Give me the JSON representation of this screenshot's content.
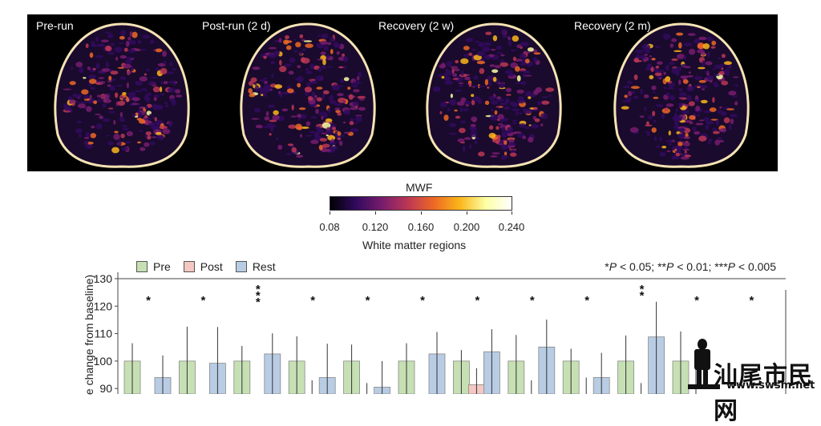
{
  "mri": {
    "panels": [
      {
        "label": "Pre-run"
      },
      {
        "label": "Post-run (2 d)"
      },
      {
        "label": "Recovery (2 w)"
      },
      {
        "label": "Recovery (2 m)"
      }
    ]
  },
  "colorbar": {
    "title": "MWF",
    "ticks": [
      "0.08",
      "0.120",
      "0.160",
      "0.200",
      "0.240"
    ],
    "colors": [
      "#000004",
      "#320a5e",
      "#781c6d",
      "#bc3754",
      "#ed6925",
      "#fbb61a",
      "#fcffa4",
      "#ffffff"
    ]
  },
  "section_title": "White matter regions",
  "legend": {
    "items": [
      {
        "label": "Pre",
        "color": "#c6e0b4"
      },
      {
        "label": "Post",
        "color": "#f4c7c3"
      },
      {
        "label": "Rest",
        "color": "#b8cce4"
      }
    ]
  },
  "significance_note": {
    "p1": "*",
    "p1_tail": " < 0.05; ",
    "p2": "**",
    "p2_tail": " < 0.01; ",
    "p3": "***",
    "p3_tail": " < 0.005",
    "P": "P"
  },
  "watermark": {
    "text": "汕尾市民网",
    "url": "www.swsm.net"
  },
  "chart_data": {
    "type": "bar",
    "ylabel": "e change from baseline)",
    "yticks": [
      90,
      100,
      110,
      120,
      130
    ],
    "ylim": [
      86,
      130
    ],
    "series_names": [
      "Pre",
      "Post",
      "Rest"
    ],
    "groups": [
      {
        "pre": [
          100,
          6.5
        ],
        "post": [
          84,
          0
        ],
        "rest": [
          94,
          8
        ],
        "sig": "*"
      },
      {
        "pre": [
          100,
          12.5
        ],
        "post": [
          84,
          0
        ],
        "rest": [
          99.2,
          13.2
        ],
        "sig": "*"
      },
      {
        "pre": [
          100,
          5.5
        ],
        "post": [
          84,
          0
        ],
        "rest": [
          102.6,
          7.5
        ],
        "sig": "***"
      },
      {
        "pre": [
          100,
          9
        ],
        "post": [
          84,
          9
        ],
        "rest": [
          94,
          12.3
        ],
        "sig": "*"
      },
      {
        "pre": [
          100,
          6
        ],
        "post": [
          84,
          8
        ],
        "rest": [
          90.5,
          9.5
        ],
        "sig": "*"
      },
      {
        "pre": [
          100,
          6.5
        ],
        "post": [
          84,
          0
        ],
        "rest": [
          102.6,
          8
        ],
        "sig": "*"
      },
      {
        "pre": [
          100,
          4
        ],
        "post": [
          91.4,
          6
        ],
        "rest": [
          103.4,
          8.2
        ],
        "sig": "*"
      },
      {
        "pre": [
          100,
          9.5
        ],
        "post": [
          84,
          9
        ],
        "rest": [
          105.1,
          10
        ],
        "sig": "*"
      },
      {
        "pre": [
          100,
          4.5
        ],
        "post": [
          84,
          10
        ],
        "rest": [
          94,
          9
        ],
        "sig": "*"
      },
      {
        "pre": [
          100,
          9.3
        ],
        "post": [
          84,
          8
        ],
        "rest": [
          108.8,
          12.8
        ],
        "sig": "**"
      },
      {
        "pre": [
          100,
          10.8
        ],
        "post": [
          84,
          20
        ],
        "rest": [
          84,
          0
        ],
        "sig": "*"
      },
      {
        "pre": [
          84,
          0
        ],
        "post": [
          84,
          0
        ],
        "rest": [
          84,
          0
        ],
        "sig": "*"
      }
    ]
  }
}
